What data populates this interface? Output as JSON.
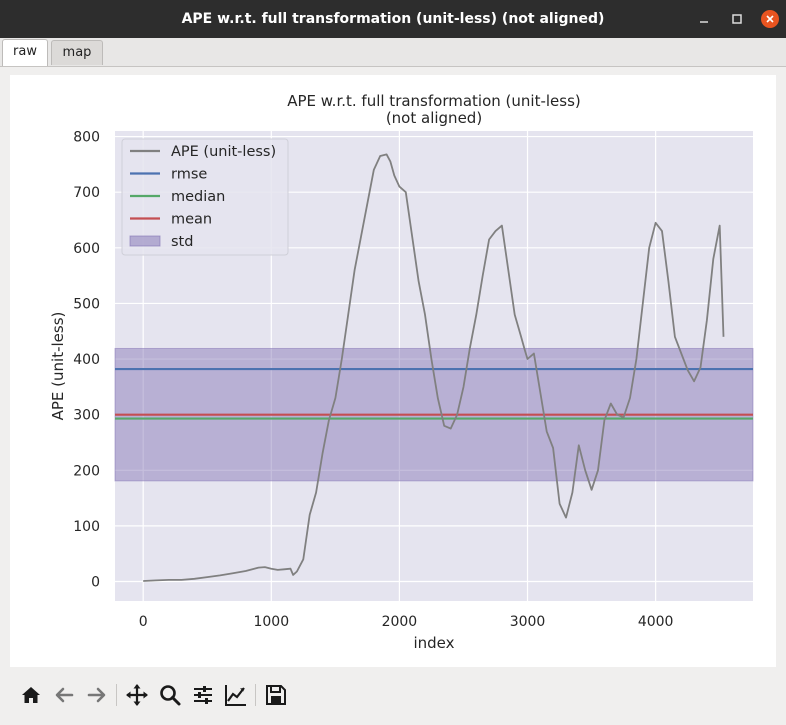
{
  "window": {
    "title": "APE w.r.t. full transformation (unit-less) (not aligned)"
  },
  "tabs": [
    {
      "label": "raw",
      "active": true
    },
    {
      "label": "map",
      "active": false
    }
  ],
  "toolbar": {
    "icons": [
      "home-icon",
      "back-arrow-icon",
      "forward-arrow-icon",
      "pan-icon",
      "zoom-icon",
      "subplots-config-icon",
      "edit-axis-icon",
      "save-icon"
    ]
  },
  "colors": {
    "plot_bg": "#e5e4ef",
    "ape": "#808080",
    "rmse": "#4c72b0",
    "median": "#55a868",
    "mean": "#c44e52",
    "std": "#8172b3"
  },
  "chart_data": {
    "type": "line",
    "title": "APE w.r.t. full transformation (unit-less)",
    "subtitle": "(not aligned)",
    "xlabel": "index",
    "ylabel": "APE (unit-less)",
    "xlim": [
      -220,
      4760
    ],
    "ylim": [
      -35,
      810
    ],
    "xticks": [
      0,
      1000,
      2000,
      3000,
      4000
    ],
    "xtick_labels": [
      "0",
      "1000",
      "2000",
      "3000",
      "4000"
    ],
    "yticks": [
      0,
      100,
      200,
      300,
      400,
      500,
      600,
      700,
      800
    ],
    "ytick_labels": [
      "0",
      "100",
      "200",
      "300",
      "400",
      "500",
      "600",
      "700",
      "800"
    ],
    "grid": true,
    "legend_placement": "top-left",
    "legend": [
      "APE (unit-less)",
      "rmse",
      "median",
      "mean",
      "std"
    ],
    "stats": {
      "rmse": 382,
      "median": 293,
      "mean": 300,
      "std_low": 181,
      "std_high": 419
    },
    "series": [
      {
        "name": "APE (unit-less)",
        "x": [
          0,
          100,
          200,
          300,
          400,
          500,
          600,
          700,
          800,
          900,
          950,
          1000,
          1050,
          1100,
          1150,
          1170,
          1200,
          1250,
          1300,
          1350,
          1400,
          1450,
          1500,
          1550,
          1600,
          1650,
          1700,
          1750,
          1800,
          1850,
          1900,
          1930,
          1960,
          2000,
          2050,
          2100,
          2150,
          2200,
          2250,
          2300,
          2350,
          2400,
          2450,
          2500,
          2550,
          2600,
          2650,
          2700,
          2750,
          2800,
          2850,
          2900,
          2950,
          2980,
          3000,
          3050,
          3100,
          3150,
          3200,
          3250,
          3300,
          3350,
          3400,
          3450,
          3500,
          3550,
          3600,
          3650,
          3700,
          3750,
          3800,
          3850,
          3900,
          3950,
          4000,
          4050,
          4100,
          4150,
          4200,
          4250,
          4300,
          4350,
          4400,
          4450,
          4500,
          4530
        ],
        "y": [
          1,
          2,
          3,
          3,
          5,
          8,
          11,
          15,
          19,
          25,
          26,
          23,
          21,
          22,
          23,
          12,
          18,
          40,
          120,
          160,
          230,
          290,
          330,
          400,
          480,
          560,
          620,
          680,
          740,
          765,
          768,
          755,
          730,
          710,
          700,
          620,
          540,
          480,
          400,
          330,
          280,
          275,
          300,
          350,
          420,
          480,
          550,
          615,
          630,
          640,
          560,
          480,
          440,
          415,
          400,
          410,
          340,
          270,
          240,
          140,
          115,
          160,
          245,
          200,
          165,
          200,
          290,
          320,
          300,
          295,
          330,
          400,
          500,
          600,
          645,
          630,
          540,
          440,
          410,
          380,
          360,
          385,
          470,
          580,
          640,
          440
        ]
      }
    ]
  }
}
